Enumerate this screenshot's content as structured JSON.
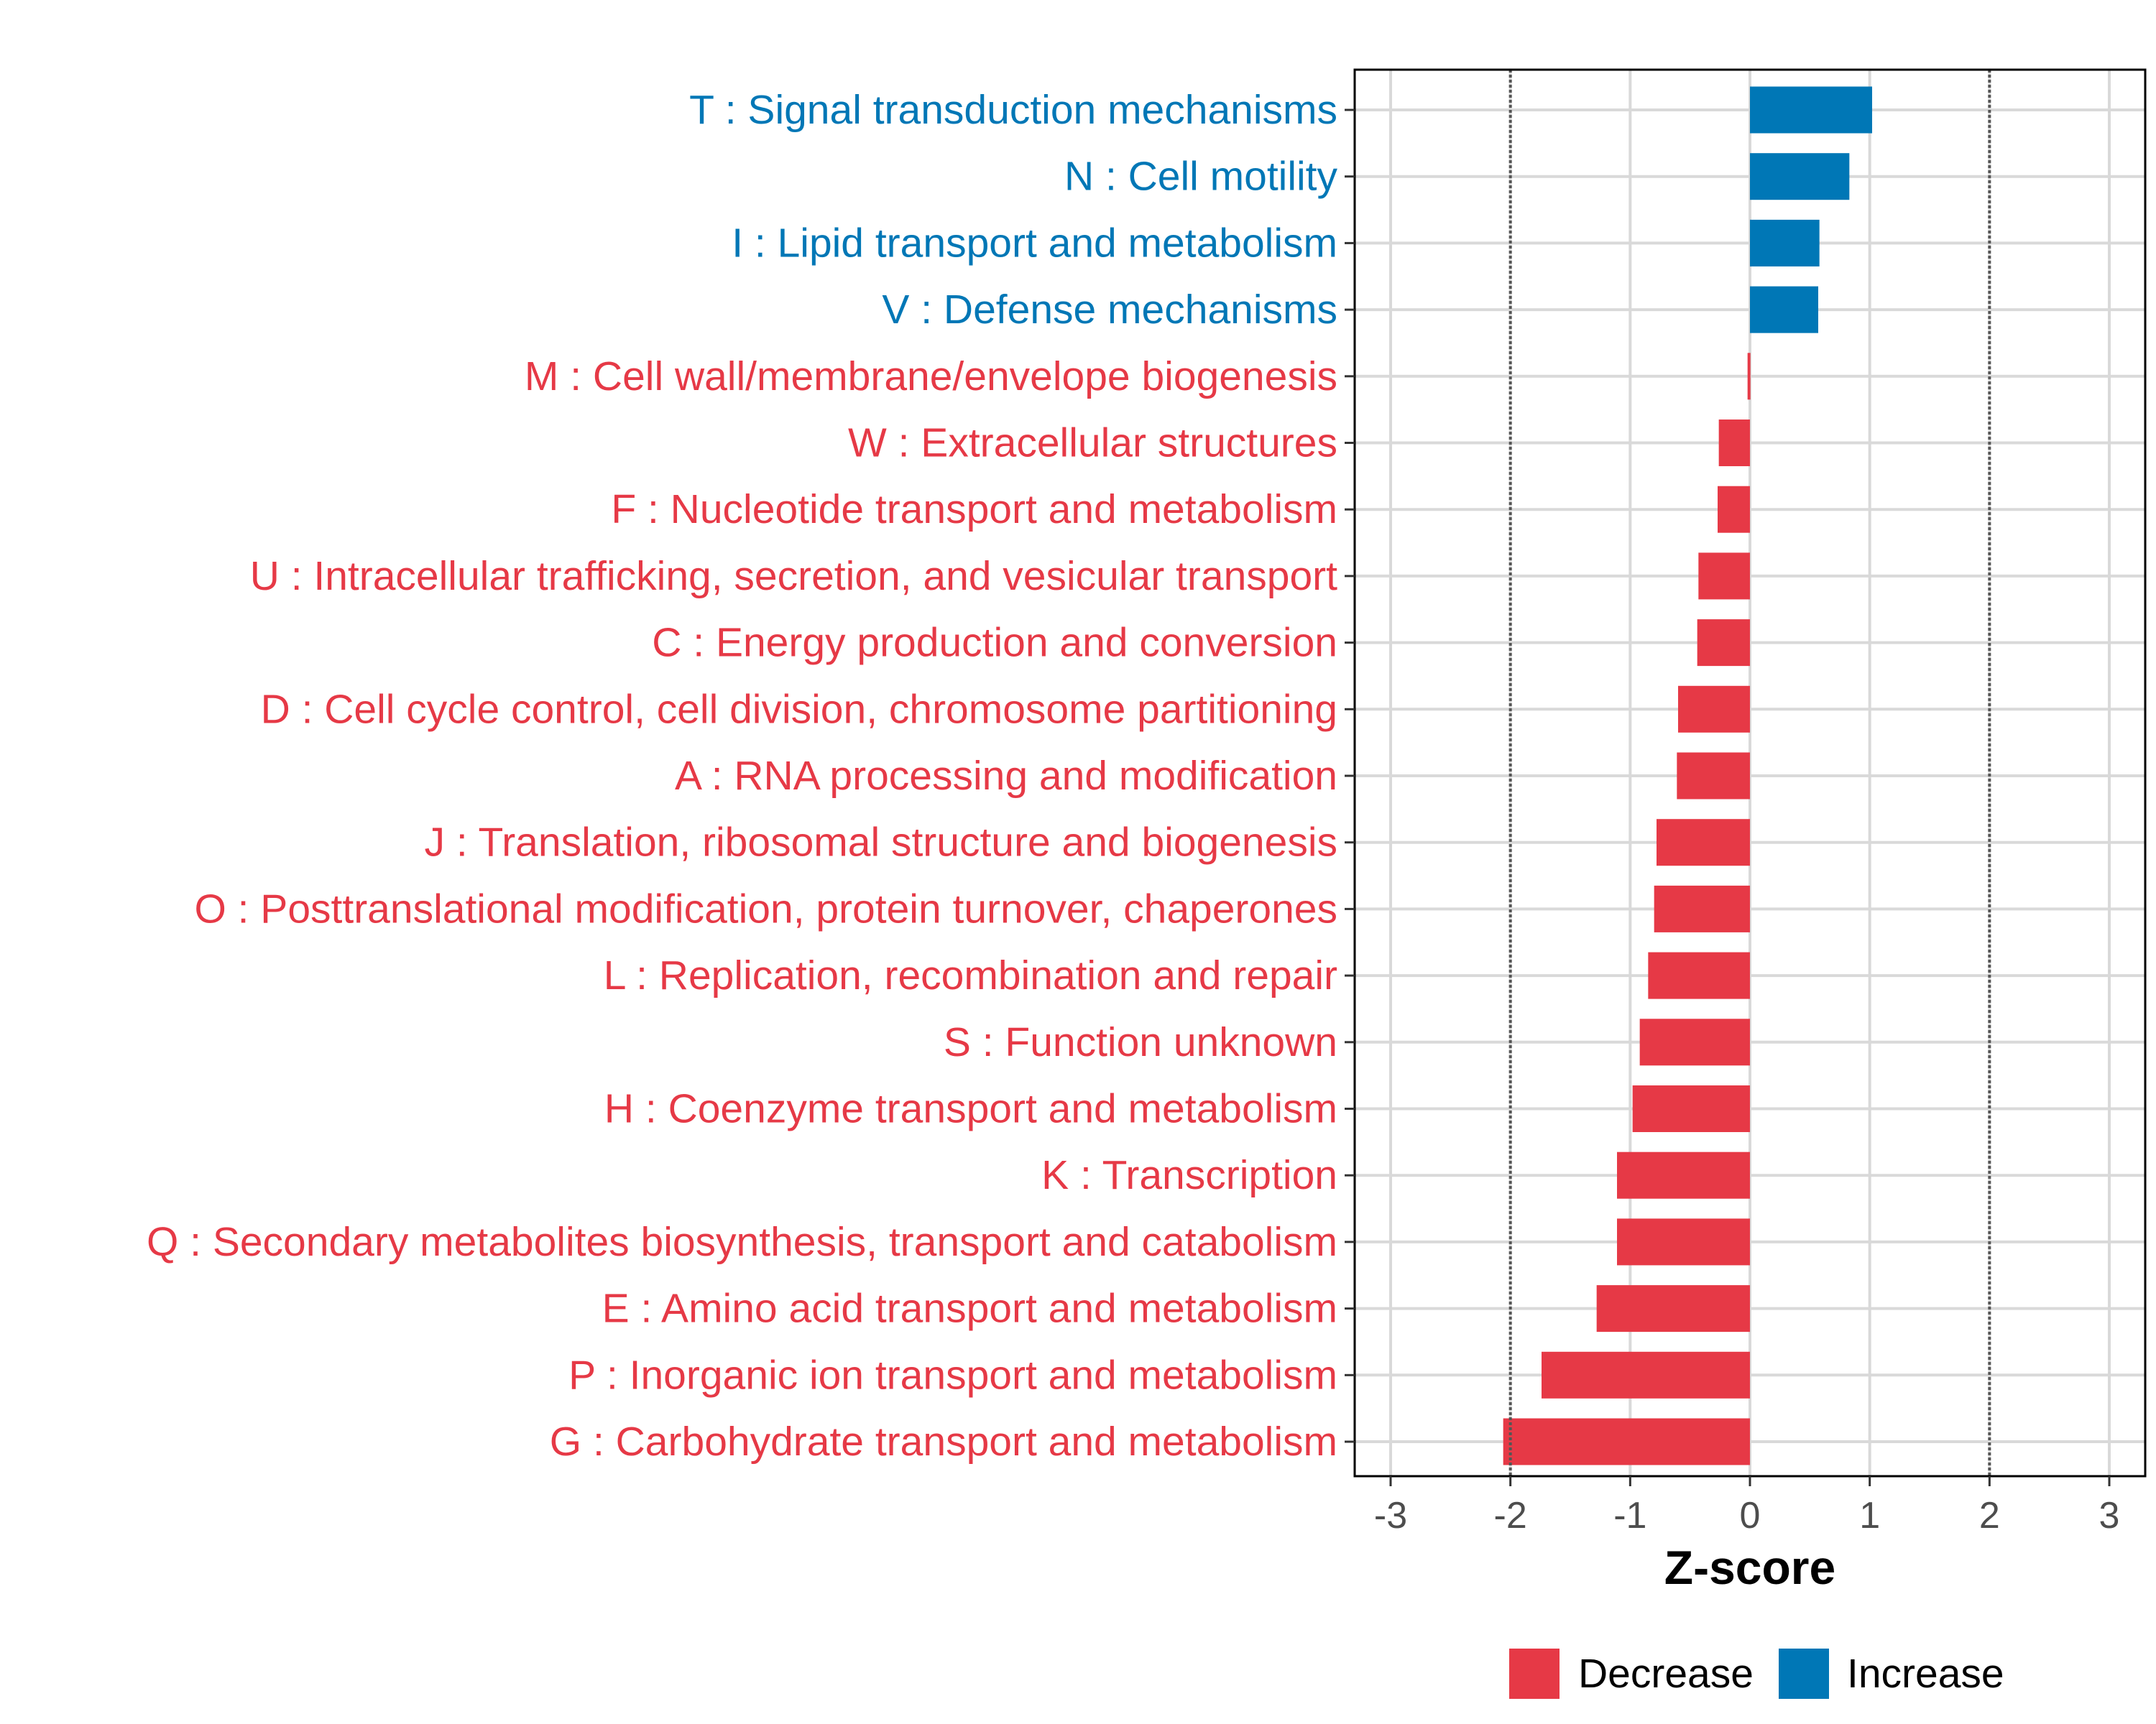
{
  "colors": {
    "decrease": "#E63946",
    "increase": "#0077B6",
    "grid": "#d9d9d9",
    "ref_line": "#555555"
  },
  "chart_data": {
    "type": "bar",
    "orientation": "horizontal",
    "xlabel": "Z-score",
    "xlim": [
      -3.3,
      3.3
    ],
    "xticks": [
      -3,
      -2,
      -1,
      0,
      1,
      2,
      3
    ],
    "xtick_labels": [
      "-3",
      "-2",
      "-1",
      "0",
      "1",
      "2",
      "3"
    ],
    "reference_lines": [
      -2,
      2
    ],
    "grid": true,
    "legend_position": "bottom",
    "legend": [
      {
        "key": "decrease",
        "label": "Decrease"
      },
      {
        "key": "increase",
        "label": "Increase"
      }
    ],
    "categories": [
      "T : Signal transduction mechanisms",
      "N : Cell motility",
      "I : Lipid transport and metabolism",
      "V : Defense mechanisms",
      "M : Cell wall/membrane/envelope biogenesis",
      "W : Extracellular structures",
      "F : Nucleotide transport and metabolism",
      "U : Intracellular trafficking, secretion, and vesicular transport",
      "C : Energy production and conversion",
      "D : Cell cycle control, cell division, chromosome partitioning",
      "A : RNA processing and modification",
      "J : Translation, ribosomal structure and biogenesis",
      "O : Posttranslational modification, protein turnover, chaperones",
      "L : Replication, recombination and repair",
      "S : Function unknown",
      "H : Coenzyme transport and metabolism",
      "K : Transcription",
      "Q : Secondary metabolites biosynthesis, transport and catabolism",
      "E : Amino acid transport and metabolism",
      "P : Inorganic ion transport and metabolism",
      "G : Carbohydrate transport and metabolism"
    ],
    "values": [
      1.02,
      0.83,
      0.58,
      0.57,
      -0.02,
      -0.26,
      -0.27,
      -0.43,
      -0.44,
      -0.6,
      -0.61,
      -0.78,
      -0.8,
      -0.85,
      -0.92,
      -0.98,
      -1.11,
      -1.11,
      -1.28,
      -1.74,
      -2.06
    ],
    "direction": [
      "increase",
      "increase",
      "increase",
      "increase",
      "decrease",
      "decrease",
      "decrease",
      "decrease",
      "decrease",
      "decrease",
      "decrease",
      "decrease",
      "decrease",
      "decrease",
      "decrease",
      "decrease",
      "decrease",
      "decrease",
      "decrease",
      "decrease",
      "decrease"
    ]
  }
}
